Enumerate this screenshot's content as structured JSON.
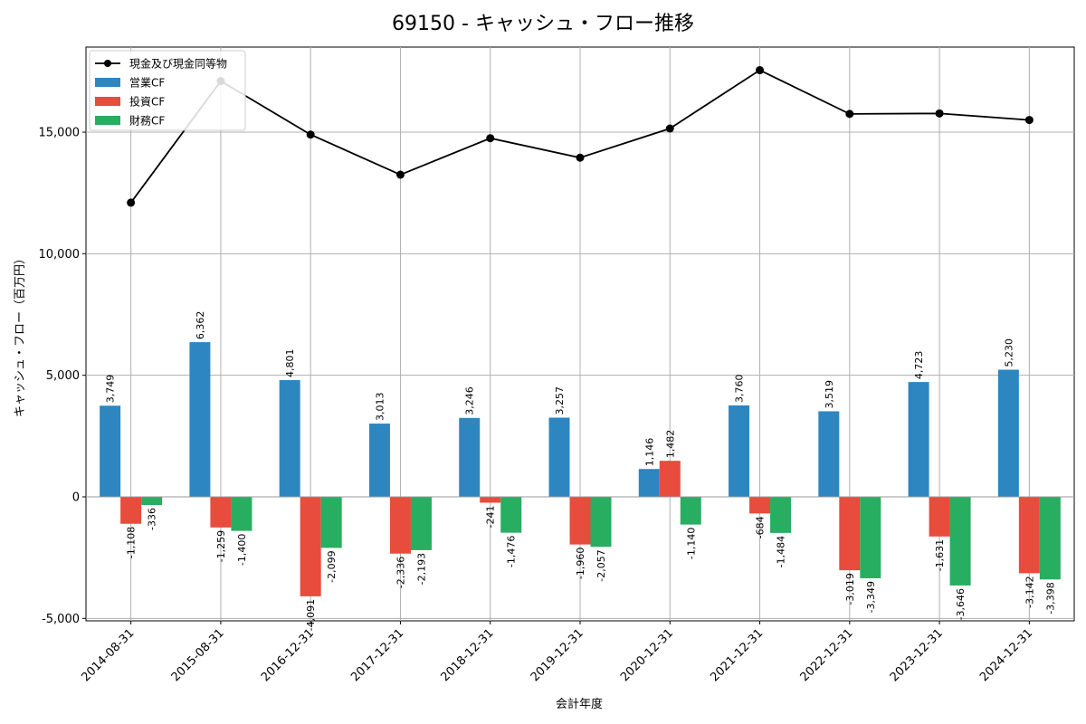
{
  "chart_data": {
    "type": "bar",
    "title": "69150 - キャッシュ・フロー推移",
    "xlabel": "会計年度",
    "ylabel": "キャッシュ・フロー（百万円）",
    "categories": [
      "2014-08-31",
      "2015-08-31",
      "2016-12-31",
      "2017-12-31",
      "2018-12-31",
      "2019-12-31",
      "2020-12-31",
      "2021-12-31",
      "2022-12-31",
      "2023-12-31",
      "2024-12-31"
    ],
    "series": [
      {
        "name": "営業CF",
        "kind": "bar",
        "color": "#2e86c1",
        "values": [
          3749,
          6362,
          4801,
          3013,
          3246,
          3257,
          1146,
          3760,
          3519,
          4723,
          5230
        ]
      },
      {
        "name": "投資CF",
        "kind": "bar",
        "color": "#e74c3c",
        "values": [
          -1108,
          -1259,
          -4091,
          -2336,
          -241,
          -1960,
          1482,
          -684,
          -3019,
          -1631,
          -3142
        ]
      },
      {
        "name": "財務CF",
        "kind": "bar",
        "color": "#27ae60",
        "values": [
          -336,
          -1400,
          -2099,
          -2193,
          -1476,
          -2057,
          -1140,
          -1484,
          -3349,
          -3646,
          -3398
        ]
      },
      {
        "name": "現金及び現金同等物",
        "kind": "line",
        "color": "#000000",
        "values": [
          12100,
          17100,
          14900,
          13250,
          14750,
          13950,
          15150,
          17550,
          15750,
          15770,
          15500
        ]
      }
    ],
    "value_labels": {
      "営業CF": [
        "3,749",
        "6,362",
        "4,801",
        "3,013",
        "3,246",
        "3,257",
        "1,146",
        "3,760",
        "3,519",
        "4,723",
        "5,230"
      ],
      "投資CF": [
        "-1,108",
        "-1,259",
        "-4,091",
        "-2,336",
        "-241",
        "-1,960",
        "1,482",
        "-684",
        "-3,019",
        "-1,631",
        "-3,142"
      ],
      "財務CF": [
        "-336",
        "-1,400",
        "-2,099",
        "-2,193",
        "-1,476",
        "-2,057",
        "-1,140",
        "-1,484",
        "-3,349",
        "-3,646",
        "-3,398"
      ]
    },
    "yticks": [
      -5000,
      0,
      5000,
      10000,
      15000
    ],
    "ytick_labels": [
      "-5,000",
      "0",
      "5,000",
      "10,000",
      "15,000"
    ],
    "ylim": [
      -5100,
      18500
    ],
    "grid": true,
    "legend": {
      "position": "top-left",
      "order": [
        "現金及び現金同等物",
        "営業CF",
        "投資CF",
        "財務CF"
      ]
    }
  }
}
